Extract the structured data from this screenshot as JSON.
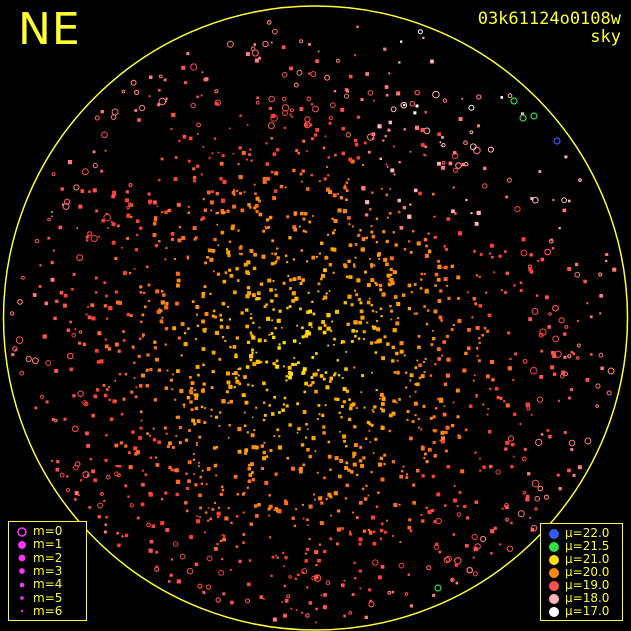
{
  "header": {
    "direction_label": "NE",
    "frame_id": "03k61124o0108w",
    "frame_type": "sky"
  },
  "colors": {
    "frame": "#ffff33",
    "magnitude_marker": "#ff33ff"
  },
  "magnitude_legend": [
    {
      "label": "m=0",
      "style": "ring"
    },
    {
      "label": "m=1",
      "style": "dot"
    },
    {
      "label": "m=2",
      "style": "dot"
    },
    {
      "label": "m=3",
      "style": "dot"
    },
    {
      "label": "m=4",
      "style": "dot"
    },
    {
      "label": "m=5",
      "style": "dot"
    },
    {
      "label": "m=6",
      "style": "dot"
    }
  ],
  "brightness_legend": [
    {
      "label": "μ=22.0",
      "color": "#2f5bff"
    },
    {
      "label": "μ=21.5",
      "color": "#33dd44"
    },
    {
      "label": "μ=21.0",
      "color": "#ffe000"
    },
    {
      "label": "μ=20.0",
      "color": "#ff8a10"
    },
    {
      "label": "μ=19.0",
      "color": "#ff5050"
    },
    {
      "label": "μ=18.0",
      "color": "#ffb4b4"
    },
    {
      "label": "μ=17.0",
      "color": "#ffffff"
    }
  ]
}
